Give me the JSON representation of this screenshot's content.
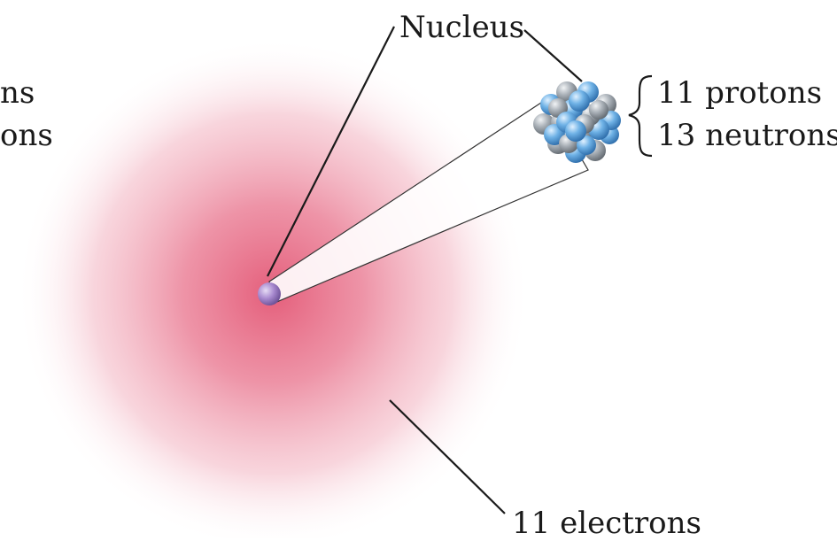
{
  "labels": {
    "nucleus": "Nucleus",
    "protons": "11 protons",
    "neutrons": "13 neutrons",
    "electrons": "11 electrons",
    "cut_left_1": "ns",
    "cut_left_2": "ons"
  },
  "colors": {
    "electron_cloud": "#e4637c",
    "nucleus_dot": "#9b7bc4",
    "proton": "#5ba3dc",
    "neutron": "#a4abb3",
    "leader_line": "#1a1a1a"
  },
  "nucleus_composition": {
    "protons": 11,
    "neutrons": 13
  }
}
